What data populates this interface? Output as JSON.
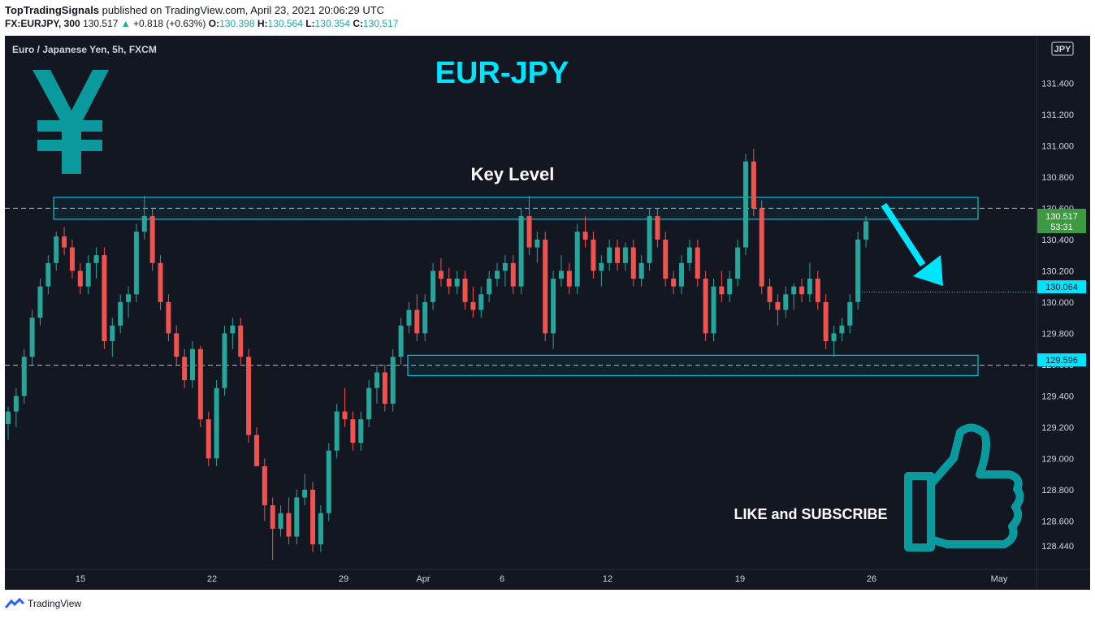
{
  "header": {
    "publisher": "TopTradingSignals",
    "published_text": "published on TradingView.com, April 23, 2021 20:06:29 UTC"
  },
  "ohlc": {
    "symbol": "FX:EURJPY, 300",
    "last": "130.517",
    "change": "+0.818 (+0.63%)",
    "o_label": "O:",
    "o": "130.398",
    "h_label": "H:",
    "h": "130.564",
    "l_label": "L:",
    "l": "130.354",
    "c_label": "C:",
    "c": "130.517"
  },
  "chart": {
    "instrument_label": "Euro / Japanese Yen, 5h, FXCM",
    "currency_badge": "JPY",
    "title": "EUR-JPY",
    "key_level_label": "Key Level",
    "cta": "LIKE and SUBSCRIBE",
    "price_tag": "130.517",
    "countdown": "53:31",
    "target_tag": "130.064",
    "support_tag": "129.596",
    "colors": {
      "bg": "#131722",
      "up": "#26a69a",
      "down": "#ef5350",
      "accent": "#00e5ff",
      "teal_icon": "#0a9a9e",
      "last_price": "#3d9a42"
    }
  },
  "chart_data": {
    "type": "candlestick",
    "y_ticks": [
      "131.400",
      "131.200",
      "131.000",
      "130.800",
      "130.600",
      "130.400",
      "130.200",
      "130.000",
      "129.800",
      "129.600",
      "129.400",
      "129.200",
      "129.000",
      "128.800",
      "128.600",
      "128.440"
    ],
    "x_ticks": [
      "15",
      "22",
      "29",
      "Apr",
      "6",
      "12",
      "19",
      "26",
      "May"
    ],
    "ylim": [
      128.3,
      131.6
    ],
    "resistance_zone": [
      130.53,
      130.67
    ],
    "support_zone": [
      129.53,
      129.66
    ],
    "resistance_line": 130.6,
    "support_line": 129.596,
    "target_line": 130.064,
    "last_price": 130.517,
    "series": [
      {
        "seg": [
          [
            129.22,
            129.33,
            129.12,
            129.3
          ],
          [
            129.3,
            129.45,
            129.2,
            129.4
          ],
          [
            129.4,
            129.7,
            129.35,
            129.65
          ],
          [
            129.65,
            129.95,
            129.6,
            129.9
          ],
          [
            129.9,
            130.15,
            129.85,
            130.1
          ],
          [
            130.1,
            130.3,
            130.05,
            130.25
          ],
          [
            130.25,
            130.45,
            130.2,
            130.42
          ],
          [
            130.42,
            130.48,
            130.3,
            130.35
          ],
          [
            130.35,
            130.4,
            130.15,
            130.2
          ],
          [
            130.2,
            130.25,
            130.05,
            130.1
          ],
          [
            130.1,
            130.3,
            130.05,
            130.25
          ],
          [
            130.25,
            130.35,
            130.15,
            130.3
          ],
          [
            130.3,
            130.35,
            129.7,
            129.75
          ],
          [
            129.75,
            129.9,
            129.65,
            129.85
          ],
          [
            129.85,
            130.05,
            129.8,
            130.0
          ],
          [
            130.0,
            130.1,
            129.9,
            130.05
          ],
          [
            130.05,
            130.5,
            130.0,
            130.45
          ],
          [
            130.45,
            130.68,
            130.4,
            130.55
          ],
          [
            130.55,
            130.6,
            130.2,
            130.25
          ],
          [
            130.25,
            130.3,
            129.95,
            130.0
          ],
          [
            130.0,
            130.05,
            129.75,
            129.8
          ],
          [
            129.8,
            129.85,
            129.6,
            129.65
          ],
          [
            129.65,
            129.7,
            129.45,
            129.5
          ],
          [
            129.5,
            129.75,
            129.45,
            129.7
          ],
          [
            129.7,
            129.72,
            129.2,
            129.25
          ],
          [
            129.25,
            129.3,
            128.95,
            129.0
          ],
          [
            129.0,
            129.5,
            128.95,
            129.45
          ],
          [
            129.45,
            129.85,
            129.4,
            129.8
          ],
          [
            129.8,
            129.9,
            129.7,
            129.85
          ],
          [
            129.85,
            129.9,
            129.6,
            129.65
          ],
          [
            129.65,
            129.7,
            129.1,
            129.15
          ],
          [
            129.15,
            129.2,
            128.95,
            128.95
          ],
          [
            128.95,
            129.0,
            128.6,
            128.7
          ],
          [
            128.7,
            128.75,
            128.35,
            128.55
          ],
          [
            128.55,
            128.7,
            128.5,
            128.65
          ],
          [
            128.65,
            128.75,
            128.45,
            128.5
          ],
          [
            128.5,
            128.8,
            128.45,
            128.75
          ],
          [
            128.75,
            128.9,
            128.7,
            128.8
          ],
          [
            128.8,
            128.85,
            128.4,
            128.45
          ],
          [
            128.45,
            128.7,
            128.4,
            128.65
          ],
          [
            128.65,
            129.1,
            128.6,
            129.05
          ],
          [
            129.05,
            129.35,
            129.0,
            129.3
          ],
          [
            129.3,
            129.45,
            129.2,
            129.25
          ],
          [
            129.25,
            129.3,
            129.05,
            129.1
          ],
          [
            129.1,
            129.3,
            129.05,
            129.25
          ],
          [
            129.25,
            129.5,
            129.2,
            129.45
          ],
          [
            129.45,
            129.6,
            129.35,
            129.55
          ],
          [
            129.55,
            129.6,
            129.3,
            129.35
          ],
          [
            129.35,
            129.7,
            129.3,
            129.65
          ],
          [
            129.65,
            129.9,
            129.6,
            129.85
          ],
          [
            129.85,
            130.0,
            129.8,
            129.95
          ],
          [
            129.95,
            130.05,
            129.75,
            129.8
          ],
          [
            129.8,
            130.05,
            129.75,
            130.0
          ],
          [
            130.0,
            130.25,
            129.95,
            130.2
          ],
          [
            130.2,
            130.28,
            130.1,
            130.15
          ],
          [
            130.15,
            130.22,
            130.05,
            130.1
          ],
          [
            130.1,
            130.2,
            130.05,
            130.15
          ],
          [
            130.15,
            130.2,
            129.95,
            130.0
          ],
          [
            130.0,
            130.1,
            129.9,
            129.95
          ],
          [
            129.95,
            130.1,
            129.9,
            130.05
          ],
          [
            130.05,
            130.2,
            130.0,
            130.15
          ],
          [
            130.15,
            130.25,
            130.1,
            130.2
          ],
          [
            130.2,
            130.3,
            130.1,
            130.25
          ],
          [
            130.25,
            130.3,
            130.05,
            130.1
          ],
          [
            130.1,
            130.6,
            130.05,
            130.55
          ],
          [
            130.55,
            130.68,
            130.3,
            130.35
          ],
          [
            130.35,
            130.45,
            130.25,
            130.4
          ],
          [
            130.4,
            130.45,
            129.75,
            129.8
          ],
          [
            129.8,
            130.2,
            129.7,
            130.15
          ],
          [
            130.15,
            130.3,
            130.1,
            130.2
          ],
          [
            130.2,
            130.25,
            130.05,
            130.1
          ],
          [
            130.1,
            130.5,
            130.05,
            130.45
          ],
          [
            130.45,
            130.55,
            130.35,
            130.4
          ],
          [
            130.4,
            130.45,
            130.15,
            130.2
          ],
          [
            130.2,
            130.3,
            130.1,
            130.25
          ],
          [
            130.25,
            130.4,
            130.2,
            130.35
          ],
          [
            130.35,
            130.4,
            130.2,
            130.25
          ],
          [
            130.25,
            130.38,
            130.2,
            130.35
          ],
          [
            130.35,
            130.4,
            130.1,
            130.15
          ],
          [
            130.15,
            130.3,
            130.1,
            130.25
          ],
          [
            130.25,
            130.6,
            130.2,
            130.55
          ],
          [
            130.55,
            130.6,
            130.35,
            130.4
          ],
          [
            130.4,
            130.45,
            130.1,
            130.15
          ],
          [
            130.15,
            130.2,
            130.05,
            130.1
          ],
          [
            130.1,
            130.3,
            130.05,
            130.25
          ],
          [
            130.25,
            130.4,
            130.2,
            130.35
          ],
          [
            130.35,
            130.4,
            130.1,
            130.15
          ],
          [
            130.15,
            130.2,
            129.75,
            129.8
          ],
          [
            129.8,
            130.15,
            129.75,
            130.1
          ],
          [
            130.1,
            130.2,
            130.0,
            130.05
          ],
          [
            130.05,
            130.2,
            130.0,
            130.15
          ],
          [
            130.15,
            130.4,
            130.1,
            130.35
          ],
          [
            130.35,
            130.95,
            130.3,
            130.9
          ],
          [
            130.9,
            130.98,
            130.55,
            130.6
          ],
          [
            130.6,
            130.65,
            130.05,
            130.1
          ],
          [
            130.1,
            130.15,
            129.95,
            130.0
          ],
          [
            130.0,
            130.05,
            129.85,
            129.95
          ],
          [
            129.95,
            130.1,
            129.9,
            130.05
          ],
          [
            130.05,
            130.12,
            129.95,
            130.1
          ],
          [
            130.1,
            130.15,
            130.0,
            130.05
          ],
          [
            130.05,
            130.25,
            130.0,
            130.15
          ],
          [
            130.15,
            130.2,
            129.95,
            130.0
          ],
          [
            130.0,
            130.05,
            129.7,
            129.75
          ],
          [
            129.75,
            129.85,
            129.65,
            129.8
          ],
          [
            129.8,
            129.9,
            129.75,
            129.85
          ],
          [
            129.85,
            130.05,
            129.8,
            130.0
          ],
          [
            130.0,
            130.45,
            129.95,
            130.4
          ],
          [
            130.4,
            130.55,
            130.35,
            130.517
          ]
        ]
      }
    ]
  }
}
